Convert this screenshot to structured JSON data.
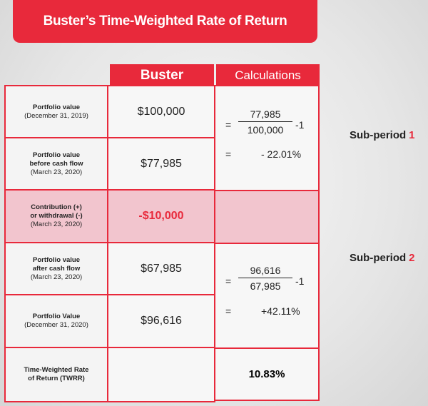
{
  "title": "Buster’s Time-Weighted Rate of Return",
  "table": {
    "headers": [
      "Buster",
      "Calculations"
    ],
    "rows": [
      {
        "label": [
          "Portfolio value",
          "(December 31, 2019)"
        ],
        "value": "$100,000"
      },
      {
        "label": [
          "Portfolio value",
          "before cash flow",
          "(March 23, 2020)"
        ],
        "value": "$77,985"
      },
      {
        "label": [
          "Contribution (+)",
          "or withdrawal (-)",
          "(March 23, 2020)"
        ],
        "value": "-$10,000"
      },
      {
        "label": [
          "Portfolio value",
          "after cash flow",
          "(March 23, 2020)"
        ],
        "value": "$67,985"
      },
      {
        "label": [
          "Portfolio Value",
          "(December 31, 2020)"
        ],
        "value": "$96,616"
      },
      {
        "label": [
          "Time-Weighted Rate",
          "of Return (TWRR)"
        ],
        "value": "10.83%"
      }
    ]
  },
  "calculations": [
    {
      "equals": "=",
      "numerator": "77,985",
      "denominator": "100,000",
      "minus_one": "-1",
      "result_equals": "=",
      "result": "- 22.01%"
    },
    {
      "equals": "=",
      "numerator": "96,616",
      "denominator": "67,985",
      "minus_one": "-1",
      "result_equals": "=",
      "result": "+42.11%"
    }
  ],
  "sub_periods": [
    {
      "text": "Sub-period",
      "number": "1"
    },
    {
      "text": "Sub-period",
      "number": "2"
    }
  ]
}
